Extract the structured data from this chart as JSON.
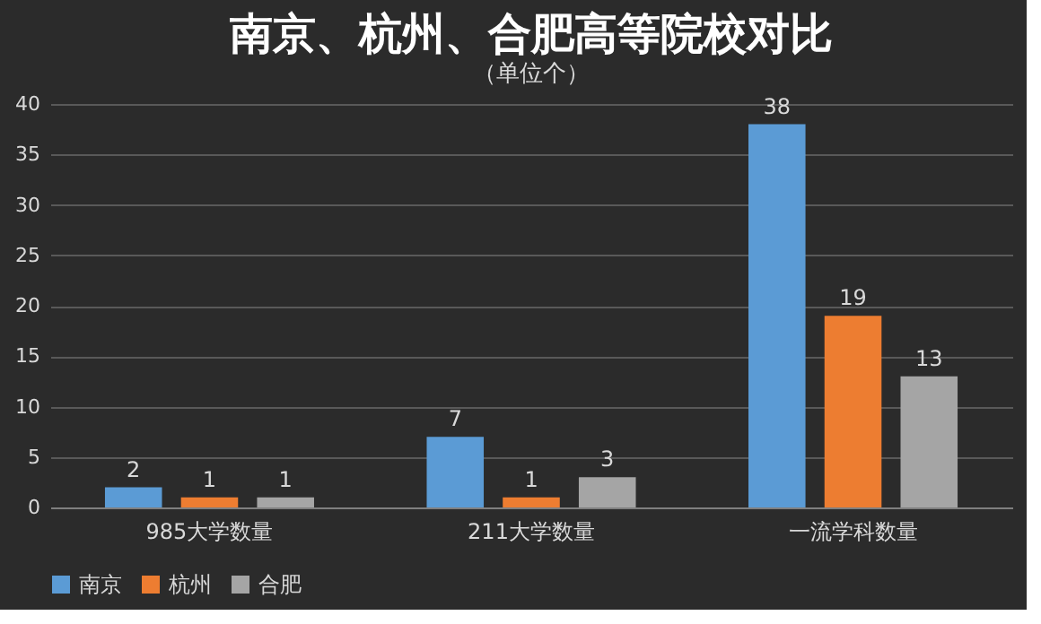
{
  "chart_data": {
    "type": "bar",
    "title": "南京、杭州、合肥高等院校对比",
    "subtitle": "（单位个）",
    "categories": [
      "985大学数量",
      "211大学数量",
      "一流学科数量"
    ],
    "series": [
      {
        "name": "南京",
        "color": "#5b9bd5",
        "values": [
          2,
          7,
          38
        ]
      },
      {
        "name": "杭州",
        "color": "#ed7d31",
        "values": [
          1,
          1,
          19
        ]
      },
      {
        "name": "合肥",
        "color": "#a5a5a5",
        "values": [
          1,
          3,
          13
        ]
      }
    ],
    "ylim": [
      0,
      40
    ],
    "yticks": [
      0,
      5,
      10,
      15,
      20,
      25,
      30,
      35,
      40
    ],
    "grid": "y",
    "legend": "bottom",
    "data_labels": true
  }
}
